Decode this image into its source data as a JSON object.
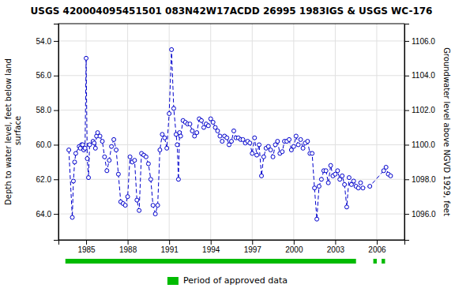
{
  "chart_data": {
    "type": "line",
    "title": "USGS 420004095451501 083N42W17ACDD 26995 1983IGS & USGS WC-176",
    "y_label": "Depth to water level, feet below land\n surface",
    "y2_label": "Groundwater level above NGVD 1929, feet",
    "xlim": [
      1983.0,
      2008.0
    ],
    "xticks": [
      1985,
      1988,
      1991,
      1994,
      1997,
      2000,
      2003,
      2006
    ],
    "ylim": [
      65.5,
      53.0
    ],
    "yticks": [
      {
        "value": 54.0,
        "label": "54.0"
      },
      {
        "value": 56.0,
        "label": "56.0"
      },
      {
        "value": 58.0,
        "label": "58.0"
      },
      {
        "value": 60.0,
        "label": "60.0"
      },
      {
        "value": 62.0,
        "label": "62.0"
      },
      {
        "value": 64.0,
        "label": "64.0"
      }
    ],
    "y2lim": [
      1094.5,
      1107.0
    ],
    "y2ticks": [
      {
        "value": 1096.0,
        "label": "1096.0"
      },
      {
        "value": 1098.0,
        "label": "1098.0"
      },
      {
        "value": 1100.0,
        "label": "1100.0"
      },
      {
        "value": 1102.0,
        "label": "1102.0"
      },
      {
        "value": 1104.0,
        "label": "1104.0"
      },
      {
        "value": 1106.0,
        "label": "1106.0"
      }
    ],
    "grid": true,
    "legend": "bottom",
    "x": [
      1983.75,
      1984.0,
      1984.08,
      1984.17,
      1984.25,
      1984.5,
      1984.58,
      1984.67,
      1984.75,
      1984.83,
      1984.92,
      1985.0,
      1985.08,
      1985.17,
      1985.25,
      1985.5,
      1985.58,
      1985.67,
      1985.75,
      1985.83,
      1986.0,
      1986.17,
      1986.33,
      1986.5,
      1986.67,
      1986.83,
      1987.0,
      1987.17,
      1987.33,
      1987.5,
      1987.67,
      1987.83,
      1988.0,
      1988.17,
      1988.33,
      1988.5,
      1988.67,
      1988.83,
      1989.0,
      1989.17,
      1989.33,
      1989.5,
      1989.67,
      1989.83,
      1990.0,
      1990.17,
      1990.33,
      1990.5,
      1990.67,
      1990.83,
      1991.0,
      1991.17,
      1991.33,
      1991.5,
      1991.58,
      1991.67,
      1991.75,
      1991.83,
      1992.0,
      1992.17,
      1992.33,
      1992.5,
      1992.67,
      1992.83,
      1993.0,
      1993.17,
      1993.33,
      1993.5,
      1993.67,
      1993.83,
      1994.0,
      1994.17,
      1994.33,
      1994.5,
      1994.67,
      1994.83,
      1995.0,
      1995.17,
      1995.33,
      1995.5,
      1995.67,
      1995.83,
      1996.0,
      1996.17,
      1996.33,
      1996.5,
      1996.67,
      1996.83,
      1997.0,
      1997.17,
      1997.33,
      1997.5,
      1997.67,
      1997.83,
      1998.0,
      1998.17,
      1998.33,
      1998.5,
      1998.67,
      1998.83,
      1999.0,
      1999.17,
      1999.33,
      1999.5,
      1999.67,
      1999.83,
      2000.0,
      2000.17,
      2000.33,
      2000.5,
      2000.67,
      2000.83,
      2001.0,
      2001.17,
      2001.33,
      2001.5,
      2001.67,
      2001.83,
      2002.0,
      2002.17,
      2002.33,
      2002.5,
      2002.67,
      2002.83,
      2003.0,
      2003.17,
      2003.33,
      2003.5,
      2003.67,
      2003.83,
      2004.0,
      2004.17,
      2004.33,
      2004.5,
      2004.67,
      2004.83,
      2005.0,
      2005.5,
      2006.5,
      2006.67,
      2006.83,
      2007.0
    ],
    "series": [
      {
        "color": "#0000cc",
        "marker": "circle",
        "line_style": "dashed",
        "values": [
          60.3,
          64.2,
          62.1,
          61.0,
          60.5,
          60.1,
          60.2,
          60.0,
          60.0,
          60.3,
          60.2,
          55.0,
          60.8,
          61.9,
          60.0,
          59.8,
          59.9,
          60.2,
          59.5,
          59.3,
          59.5,
          59.8,
          60.7,
          61.5,
          60.9,
          60.1,
          59.7,
          60.3,
          61.7,
          63.3,
          63.4,
          63.5,
          63.0,
          60.7,
          61.0,
          60.9,
          63.2,
          63.8,
          60.5,
          60.6,
          60.7,
          61.1,
          62.0,
          63.5,
          64.0,
          63.5,
          60.3,
          59.4,
          59.6,
          60.2,
          58.2,
          54.5,
          57.9,
          59.4,
          60.0,
          62.0,
          59.3,
          59.5,
          58.6,
          58.7,
          58.8,
          58.8,
          59.2,
          59.5,
          59.3,
          58.5,
          58.6,
          59.0,
          58.8,
          58.9,
          58.5,
          58.7,
          59.0,
          59.2,
          59.5,
          59.8,
          59.5,
          59.6,
          60.0,
          59.8,
          59.2,
          59.6,
          59.6,
          59.7,
          59.7,
          59.9,
          59.8,
          59.9,
          60.5,
          59.6,
          60.6,
          60.0,
          61.8,
          60.7,
          60.2,
          60.1,
          60.3,
          60.7,
          60.0,
          59.8,
          60.5,
          60.4,
          59.8,
          59.8,
          59.7,
          60.3,
          60.1,
          59.5,
          60.0,
          59.7,
          60.2,
          59.9,
          59.8,
          60.5,
          60.5,
          62.5,
          64.3,
          62.4,
          62.0,
          61.5,
          61.5,
          62.2,
          61.2,
          61.8,
          61.7,
          61.5,
          62.0,
          61.8,
          62.3,
          63.6,
          61.9,
          62.3,
          62.1,
          62.4,
          62.5,
          62.2,
          62.5,
          62.4,
          61.5,
          61.3,
          61.7,
          61.8
        ]
      }
    ],
    "periods": {
      "name": "Period of approved data",
      "color": "#00bb00",
      "ranges": [
        [
          1983.5,
          2004.5
        ],
        [
          2005.75,
          2006.0
        ],
        [
          2006.35,
          2006.6
        ]
      ]
    }
  }
}
